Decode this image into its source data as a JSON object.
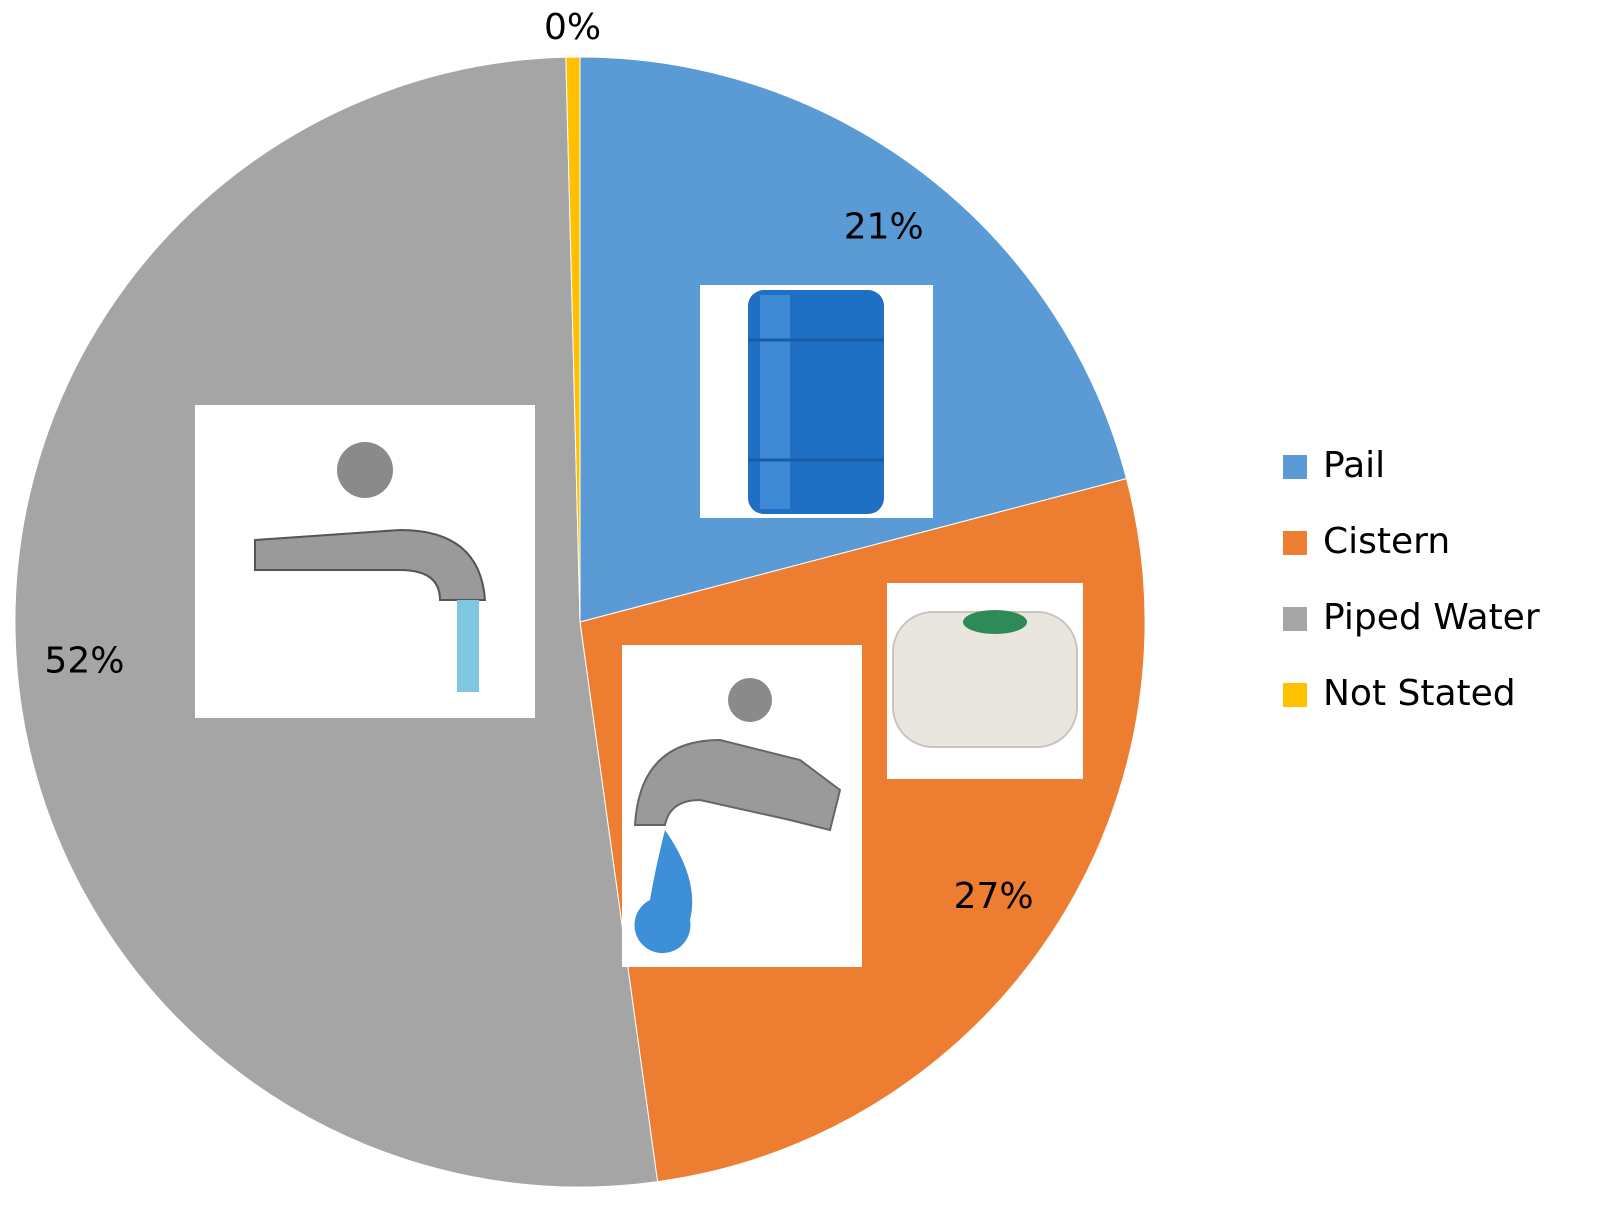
{
  "chart_data": {
    "type": "pie",
    "categories": [
      "Pail",
      "Cistern",
      "Piped Water",
      "Not Stated"
    ],
    "values": [
      21,
      27,
      52,
      0.4
    ],
    "value_labels": [
      "21%",
      "27%",
      "52%",
      "0%"
    ],
    "colors": [
      "#5b9bd5",
      "#ed7d31",
      "#a5a5a5",
      "#ffc000"
    ],
    "legend": "right"
  }
}
